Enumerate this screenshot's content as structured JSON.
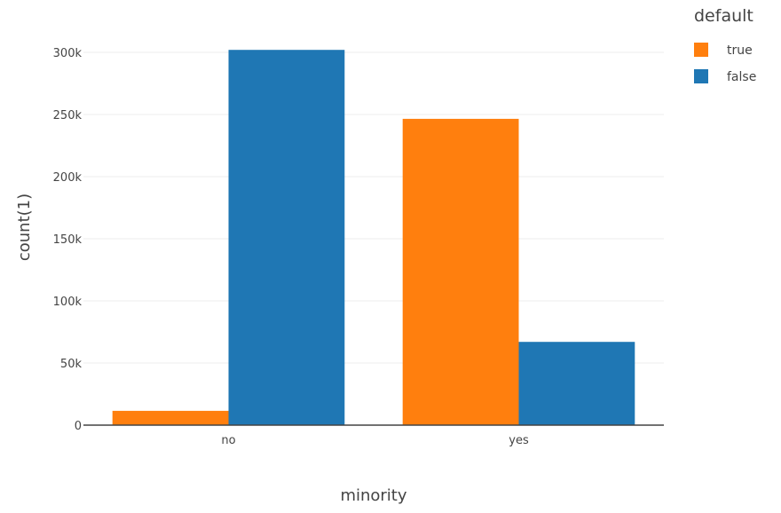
{
  "chart_data": {
    "type": "bar",
    "title": "",
    "xlabel": "minority",
    "ylabel": "count(1)",
    "categories": [
      "no",
      "yes"
    ],
    "series": [
      {
        "name": "true",
        "color": "#ff7f0e",
        "values": [
          11500,
          246500
        ]
      },
      {
        "name": "false",
        "color": "#1f77b4",
        "values": [
          302000,
          67000
        ]
      }
    ],
    "ylim": [
      0,
      315000
    ],
    "yticks": [
      0,
      50000,
      100000,
      150000,
      200000,
      250000,
      300000
    ],
    "ytick_labels": [
      "0",
      "50k",
      "100k",
      "150k",
      "200k",
      "250k",
      "300k"
    ],
    "grid": true,
    "legend": {
      "title": "default",
      "position": "top-right"
    }
  }
}
